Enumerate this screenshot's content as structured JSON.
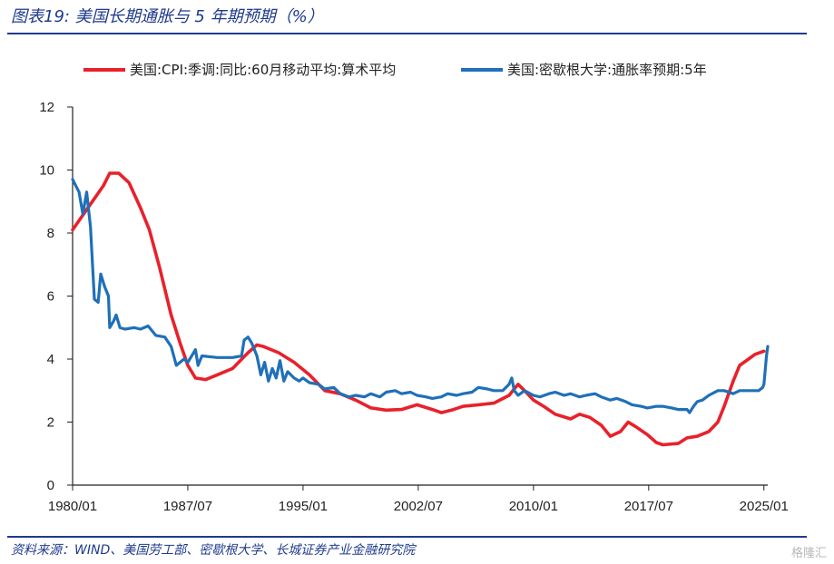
{
  "figure": {
    "title": "图表19:  美国长期通胀与 5 年期预期（%）",
    "source": "资料来源：WIND、美国劳工部、密歇根大学、长城证券产业金融研究院",
    "watermark": "格隆汇"
  },
  "colors": {
    "red": "#e8212b",
    "blue": "#1f70b8",
    "axis": "#222222",
    "frame": "#1f3b8c"
  },
  "chart_data": {
    "type": "line",
    "ylim": [
      0,
      12
    ],
    "yticks": [
      0,
      2,
      4,
      6,
      8,
      10,
      12
    ],
    "xlim": [
      "1980-01",
      "2025-04"
    ],
    "xticks": [
      "1980/01",
      "1987/07",
      "1995/01",
      "2002/07",
      "2010/01",
      "2017/07",
      "2025/01"
    ],
    "grid": false,
    "legend_position": "top",
    "series": [
      {
        "name": "美国:CPI:季调:同比:60月移动平均:算术平均",
        "color": "#e8212b",
        "points": [
          [
            "1980-01",
            8.1
          ],
          [
            "1981-01",
            8.8
          ],
          [
            "1982-01",
            9.5
          ],
          [
            "1982-06",
            9.9
          ],
          [
            "1983-01",
            9.9
          ],
          [
            "1983-09",
            9.6
          ],
          [
            "1984-06",
            8.8
          ],
          [
            "1985-01",
            8.1
          ],
          [
            "1985-09",
            6.9
          ],
          [
            "1986-06",
            5.4
          ],
          [
            "1987-01",
            4.5
          ],
          [
            "1987-07",
            3.8
          ],
          [
            "1988-01",
            3.4
          ],
          [
            "1988-09",
            3.35
          ],
          [
            "1989-06",
            3.5
          ],
          [
            "1990-06",
            3.7
          ],
          [
            "1991-06",
            4.2
          ],
          [
            "1992-01",
            4.45
          ],
          [
            "1992-06",
            4.4
          ],
          [
            "1993-06",
            4.2
          ],
          [
            "1994-06",
            3.9
          ],
          [
            "1995-06",
            3.5
          ],
          [
            "1996-06",
            3.0
          ],
          [
            "1997-06",
            2.9
          ],
          [
            "1998-06",
            2.7
          ],
          [
            "1999-06",
            2.45
          ],
          [
            "2000-06",
            2.38
          ],
          [
            "2001-06",
            2.4
          ],
          [
            "2002-06",
            2.55
          ],
          [
            "2003-06",
            2.4
          ],
          [
            "2004-01",
            2.3
          ],
          [
            "2004-09",
            2.38
          ],
          [
            "2005-06",
            2.5
          ],
          [
            "2006-06",
            2.55
          ],
          [
            "2007-06",
            2.6
          ],
          [
            "2008-06",
            2.85
          ],
          [
            "2009-01",
            3.2
          ],
          [
            "2009-06",
            3.0
          ],
          [
            "2010-01",
            2.7
          ],
          [
            "2010-09",
            2.5
          ],
          [
            "2011-06",
            2.25
          ],
          [
            "2012-06",
            2.1
          ],
          [
            "2013-01",
            2.25
          ],
          [
            "2013-09",
            2.15
          ],
          [
            "2014-06",
            1.9
          ],
          [
            "2015-01",
            1.55
          ],
          [
            "2015-09",
            1.7
          ],
          [
            "2016-03",
            2.0
          ],
          [
            "2016-09",
            1.85
          ],
          [
            "2017-06",
            1.6
          ],
          [
            "2018-01",
            1.35
          ],
          [
            "2018-06",
            1.28
          ],
          [
            "2019-06",
            1.32
          ],
          [
            "2020-01",
            1.5
          ],
          [
            "2020-09",
            1.55
          ],
          [
            "2021-06",
            1.7
          ],
          [
            "2022-01",
            2.0
          ],
          [
            "2022-06",
            2.5
          ],
          [
            "2023-01",
            3.3
          ],
          [
            "2023-06",
            3.8
          ],
          [
            "2024-01",
            4.0
          ],
          [
            "2024-06",
            4.15
          ],
          [
            "2025-01",
            4.25
          ]
        ]
      },
      {
        "name": "美国:密歇根大学:通胀率预期:5年",
        "color": "#1f70b8",
        "points": [
          [
            "1980-01",
            9.7
          ],
          [
            "1980-06",
            9.3
          ],
          [
            "1980-09",
            8.6
          ],
          [
            "1980-12",
            9.3
          ],
          [
            "1981-03",
            8.2
          ],
          [
            "1981-06",
            5.9
          ],
          [
            "1981-09",
            5.8
          ],
          [
            "1981-11",
            6.7
          ],
          [
            "1982-02",
            6.3
          ],
          [
            "1982-05",
            6.0
          ],
          [
            "1982-06",
            5.0
          ],
          [
            "1982-09",
            5.2
          ],
          [
            "1982-11",
            5.4
          ],
          [
            "1983-02",
            5.0
          ],
          [
            "1983-06",
            4.95
          ],
          [
            "1984-01",
            5.0
          ],
          [
            "1984-06",
            4.95
          ],
          [
            "1984-12",
            5.05
          ],
          [
            "1985-06",
            4.75
          ],
          [
            "1986-01",
            4.7
          ],
          [
            "1986-06",
            4.4
          ],
          [
            "1986-10",
            3.8
          ],
          [
            "1987-04",
            4.0
          ],
          [
            "1987-07",
            3.9
          ],
          [
            "1988-01",
            4.3
          ],
          [
            "1988-03",
            3.8
          ],
          [
            "1988-06",
            4.1
          ],
          [
            "1989-06",
            4.05
          ],
          [
            "1990-06",
            4.05
          ],
          [
            "1991-01",
            4.1
          ],
          [
            "1991-03",
            4.6
          ],
          [
            "1991-06",
            4.7
          ],
          [
            "1991-09",
            4.5
          ],
          [
            "1992-01",
            4.1
          ],
          [
            "1992-04",
            3.5
          ],
          [
            "1992-07",
            3.9
          ],
          [
            "1992-10",
            3.3
          ],
          [
            "1993-01",
            3.7
          ],
          [
            "1993-04",
            3.4
          ],
          [
            "1993-07",
            3.95
          ],
          [
            "1993-10",
            3.3
          ],
          [
            "1994-01",
            3.6
          ],
          [
            "1994-06",
            3.4
          ],
          [
            "1994-10",
            3.3
          ],
          [
            "1995-01",
            3.4
          ],
          [
            "1995-06",
            3.25
          ],
          [
            "1996-01",
            3.2
          ],
          [
            "1996-06",
            3.05
          ],
          [
            "1997-01",
            3.1
          ],
          [
            "1997-06",
            2.9
          ],
          [
            "1998-01",
            2.8
          ],
          [
            "1998-06",
            2.85
          ],
          [
            "1999-01",
            2.8
          ],
          [
            "1999-06",
            2.9
          ],
          [
            "2000-01",
            2.8
          ],
          [
            "2000-06",
            2.95
          ],
          [
            "2001-01",
            3.0
          ],
          [
            "2001-06",
            2.9
          ],
          [
            "2002-01",
            2.95
          ],
          [
            "2002-06",
            2.85
          ],
          [
            "2003-01",
            2.8
          ],
          [
            "2003-06",
            2.75
          ],
          [
            "2004-01",
            2.8
          ],
          [
            "2004-06",
            2.9
          ],
          [
            "2005-01",
            2.85
          ],
          [
            "2005-06",
            2.9
          ],
          [
            "2006-01",
            2.95
          ],
          [
            "2006-06",
            3.1
          ],
          [
            "2007-01",
            3.05
          ],
          [
            "2007-06",
            3.0
          ],
          [
            "2008-01",
            3.0
          ],
          [
            "2008-06",
            3.2
          ],
          [
            "2008-08",
            3.4
          ],
          [
            "2008-10",
            3.0
          ],
          [
            "2009-01",
            2.85
          ],
          [
            "2009-06",
            3.0
          ],
          [
            "2010-01",
            2.85
          ],
          [
            "2010-06",
            2.8
          ],
          [
            "2011-01",
            2.9
          ],
          [
            "2011-06",
            2.95
          ],
          [
            "2012-01",
            2.85
          ],
          [
            "2012-06",
            2.9
          ],
          [
            "2013-01",
            2.8
          ],
          [
            "2013-06",
            2.85
          ],
          [
            "2014-01",
            2.9
          ],
          [
            "2014-06",
            2.8
          ],
          [
            "2015-01",
            2.7
          ],
          [
            "2015-06",
            2.75
          ],
          [
            "2016-01",
            2.65
          ],
          [
            "2016-06",
            2.55
          ],
          [
            "2017-01",
            2.5
          ],
          [
            "2017-06",
            2.45
          ],
          [
            "2018-01",
            2.5
          ],
          [
            "2018-06",
            2.5
          ],
          [
            "2019-01",
            2.45
          ],
          [
            "2019-06",
            2.4
          ],
          [
            "2020-01",
            2.4
          ],
          [
            "2020-03",
            2.3
          ],
          [
            "2020-06",
            2.5
          ],
          [
            "2020-09",
            2.65
          ],
          [
            "2021-01",
            2.7
          ],
          [
            "2021-06",
            2.85
          ],
          [
            "2022-01",
            3.0
          ],
          [
            "2022-06",
            3.0
          ],
          [
            "2023-01",
            2.9
          ],
          [
            "2023-06",
            3.0
          ],
          [
            "2024-01",
            3.0
          ],
          [
            "2024-06",
            3.0
          ],
          [
            "2024-09",
            3.0
          ],
          [
            "2024-12",
            3.1
          ],
          [
            "2025-01",
            3.2
          ],
          [
            "2025-03",
            4.1
          ],
          [
            "2025-04",
            4.4
          ]
        ]
      }
    ]
  }
}
